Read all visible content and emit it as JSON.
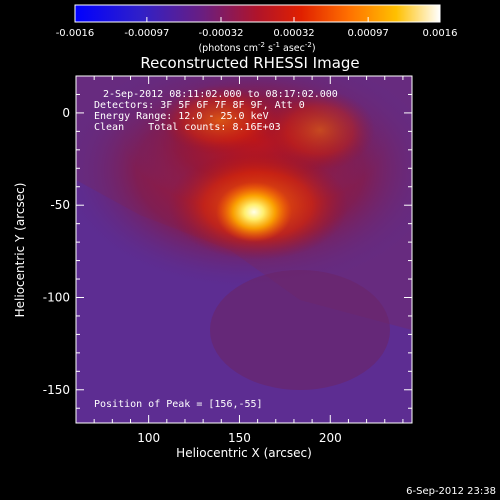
{
  "colorbar": {
    "ticks": [
      "-0.0016",
      "-0.00097",
      "-0.00032",
      "0.00032",
      "0.00097",
      "0.0016"
    ],
    "unit": "(photons cm",
    "unit_exp1": "-2",
    "unit_mid": " s",
    "unit_exp2": "-1",
    "unit_mid2": " asec",
    "unit_exp3": "-2",
    "unit_end": ")",
    "vmin": -0.0016,
    "vmax": 0.0016
  },
  "annotations": {
    "time_range": "2-Sep-2012 08:11:02.000 to 08:17:02.000",
    "detectors": "Detectors: 3F 5F 6F 7F 8F 9F, Att 0",
    "energy": "Energy Range: 12.0 - 25.0 keV",
    "clean": "Clean    Total counts: 8.16E+03",
    "peak": "Position of Peak = [156,-55]"
  },
  "footer": {
    "timestamp": "6-Sep-2012 23:38"
  },
  "colors": {
    "background": "#000000",
    "axis": "#ffffff",
    "image_low": "#5a2c8e",
    "image_high": "#ffffe0"
  },
  "chart_data": {
    "type": "heatmap",
    "title": "Reconstructed RHESSI Image",
    "xlabel": "Heliocentric X (arcsec)",
    "ylabel": "Heliocentric Y (arcsec)",
    "xlim": [
      60,
      245
    ],
    "ylim": [
      -168,
      20
    ],
    "xticks": [
      100,
      150,
      200
    ],
    "yticks": [
      0,
      -50,
      -100,
      -150
    ],
    "peak": {
      "x": 156,
      "y": -55
    },
    "colormap": "blue-purple-red-yellow-white",
    "grid": false
  }
}
